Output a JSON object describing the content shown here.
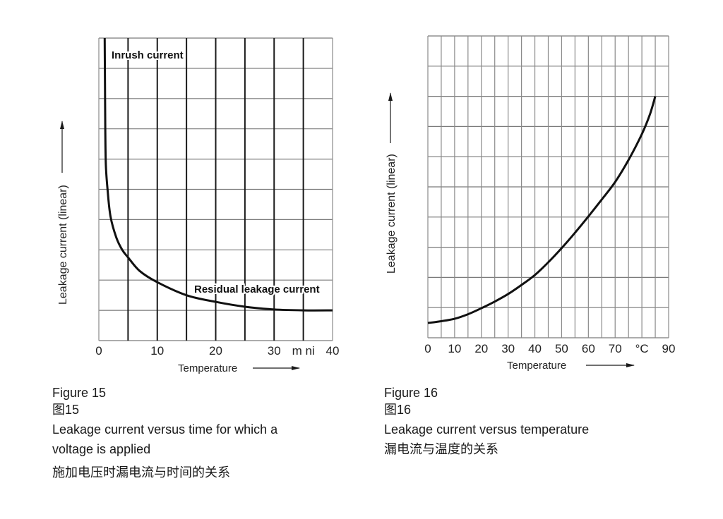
{
  "chart_data": [
    {
      "type": "line",
      "title": "",
      "xlabel": "Temperature",
      "ylabel": "Leakage current (linear)",
      "xlim": [
        0,
        40
      ],
      "ylim": [
        0,
        10
      ],
      "grid": true,
      "x_ticks": [
        {
          "value": 0,
          "label": "0"
        },
        {
          "value": 10,
          "label": "10"
        },
        {
          "value": 20,
          "label": "20"
        },
        {
          "value": 30,
          "label": "30"
        },
        {
          "value": 35,
          "label": "m ni"
        },
        {
          "value": 40,
          "label": "40"
        }
      ],
      "annotations": [
        "Inrush current",
        "Residual leakage current"
      ],
      "series": [
        {
          "x": [
            1.0,
            1.05,
            1.1,
            1.2,
            1.5,
            2,
            3,
            4,
            5,
            7,
            10,
            15,
            20,
            25,
            30,
            35,
            40
          ],
          "y": [
            10,
            8.5,
            7,
            5.8,
            4.97,
            4.1,
            3.4,
            3.0,
            2.75,
            2.3,
            1.93,
            1.5,
            1.28,
            1.12,
            1.03,
            1.0,
            1.0
          ]
        }
      ],
      "caption": {
        "figure": "Figure 15",
        "figure_cn": "图15",
        "text_line1": "Leakage current versus time for which a",
        "text_line2": "voltage is applied",
        "text_cn": "施加电压时漏电流与时间的关系"
      }
    },
    {
      "type": "line",
      "title": "",
      "xlabel": "Temperature",
      "ylabel": "Leakage current (linear)",
      "xlim": [
        0,
        90
      ],
      "ylim": [
        0,
        10
      ],
      "grid": true,
      "x_ticks": [
        {
          "value": 0,
          "label": "0"
        },
        {
          "value": 10,
          "label": "10"
        },
        {
          "value": 20,
          "label": "20"
        },
        {
          "value": 30,
          "label": "30"
        },
        {
          "value": 40,
          "label": "40"
        },
        {
          "value": 50,
          "label": "50"
        },
        {
          "value": 60,
          "label": "60"
        },
        {
          "value": 70,
          "label": "70"
        },
        {
          "value": 80,
          "label": "°C"
        },
        {
          "value": 90,
          "label": "90"
        }
      ],
      "series": [
        {
          "x": [
            0,
            5,
            10,
            15,
            20,
            25,
            30,
            35,
            40,
            45,
            50,
            55,
            60,
            65,
            70,
            75,
            80,
            83,
            85
          ],
          "y": [
            0.49,
            0.55,
            0.63,
            0.78,
            0.98,
            1.2,
            1.45,
            1.75,
            2.08,
            2.5,
            2.97,
            3.48,
            4.02,
            4.58,
            5.16,
            5.89,
            6.75,
            7.4,
            8.0
          ]
        }
      ],
      "caption": {
        "figure": "Figure 16",
        "figure_cn": "图16",
        "text_line1": "Leakage current versus temperature",
        "text_cn": "漏电流与温度的关系"
      }
    }
  ]
}
